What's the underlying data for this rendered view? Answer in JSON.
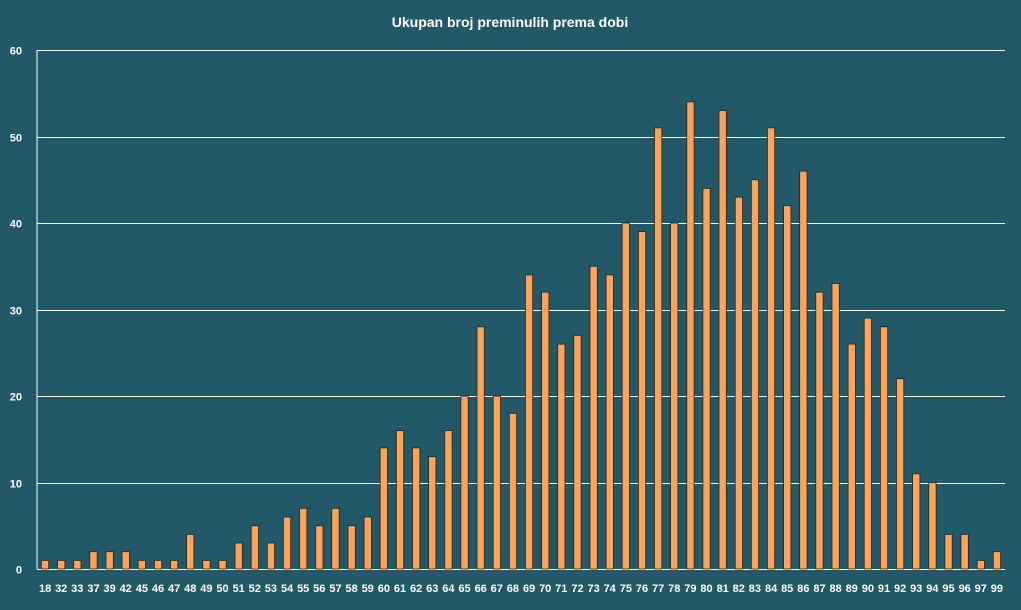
{
  "chart_data": {
    "type": "bar",
    "title": "Ukupan broj preminulih prema dobi",
    "xlabel": "",
    "ylabel": "",
    "ylim": [
      0,
      60
    ],
    "yticks": [
      0,
      10,
      20,
      30,
      40,
      50,
      60
    ],
    "grid": true,
    "legend": "none",
    "categories": [
      "18",
      "32",
      "33",
      "37",
      "39",
      "42",
      "45",
      "46",
      "47",
      "48",
      "49",
      "50",
      "51",
      "52",
      "53",
      "54",
      "55",
      "56",
      "57",
      "58",
      "59",
      "60",
      "61",
      "62",
      "63",
      "64",
      "65",
      "66",
      "67",
      "68",
      "69",
      "70",
      "71",
      "72",
      "73",
      "74",
      "75",
      "76",
      "77",
      "78",
      "79",
      "80",
      "81",
      "82",
      "83",
      "84",
      "85",
      "86",
      "87",
      "88",
      "89",
      "90",
      "91",
      "92",
      "93",
      "94",
      "95",
      "96",
      "97",
      "99"
    ],
    "values": [
      1,
      1,
      1,
      2,
      2,
      2,
      1,
      1,
      1,
      4,
      1,
      1,
      3,
      5,
      3,
      6,
      7,
      5,
      7,
      5,
      6,
      14,
      16,
      14,
      13,
      16,
      20,
      28,
      20,
      18,
      34,
      32,
      26,
      27,
      35,
      34,
      40,
      39,
      51,
      40,
      54,
      44,
      53,
      43,
      45,
      51,
      42,
      46,
      32,
      33,
      26,
      29,
      28,
      22,
      11,
      10,
      4,
      4,
      1,
      2
    ],
    "colors": {
      "background": "#215968",
      "bar_fill": "#f9a45c",
      "bar_stroke": "#3a1f08",
      "grid": "#ffffff",
      "text": "#ffffff"
    }
  }
}
